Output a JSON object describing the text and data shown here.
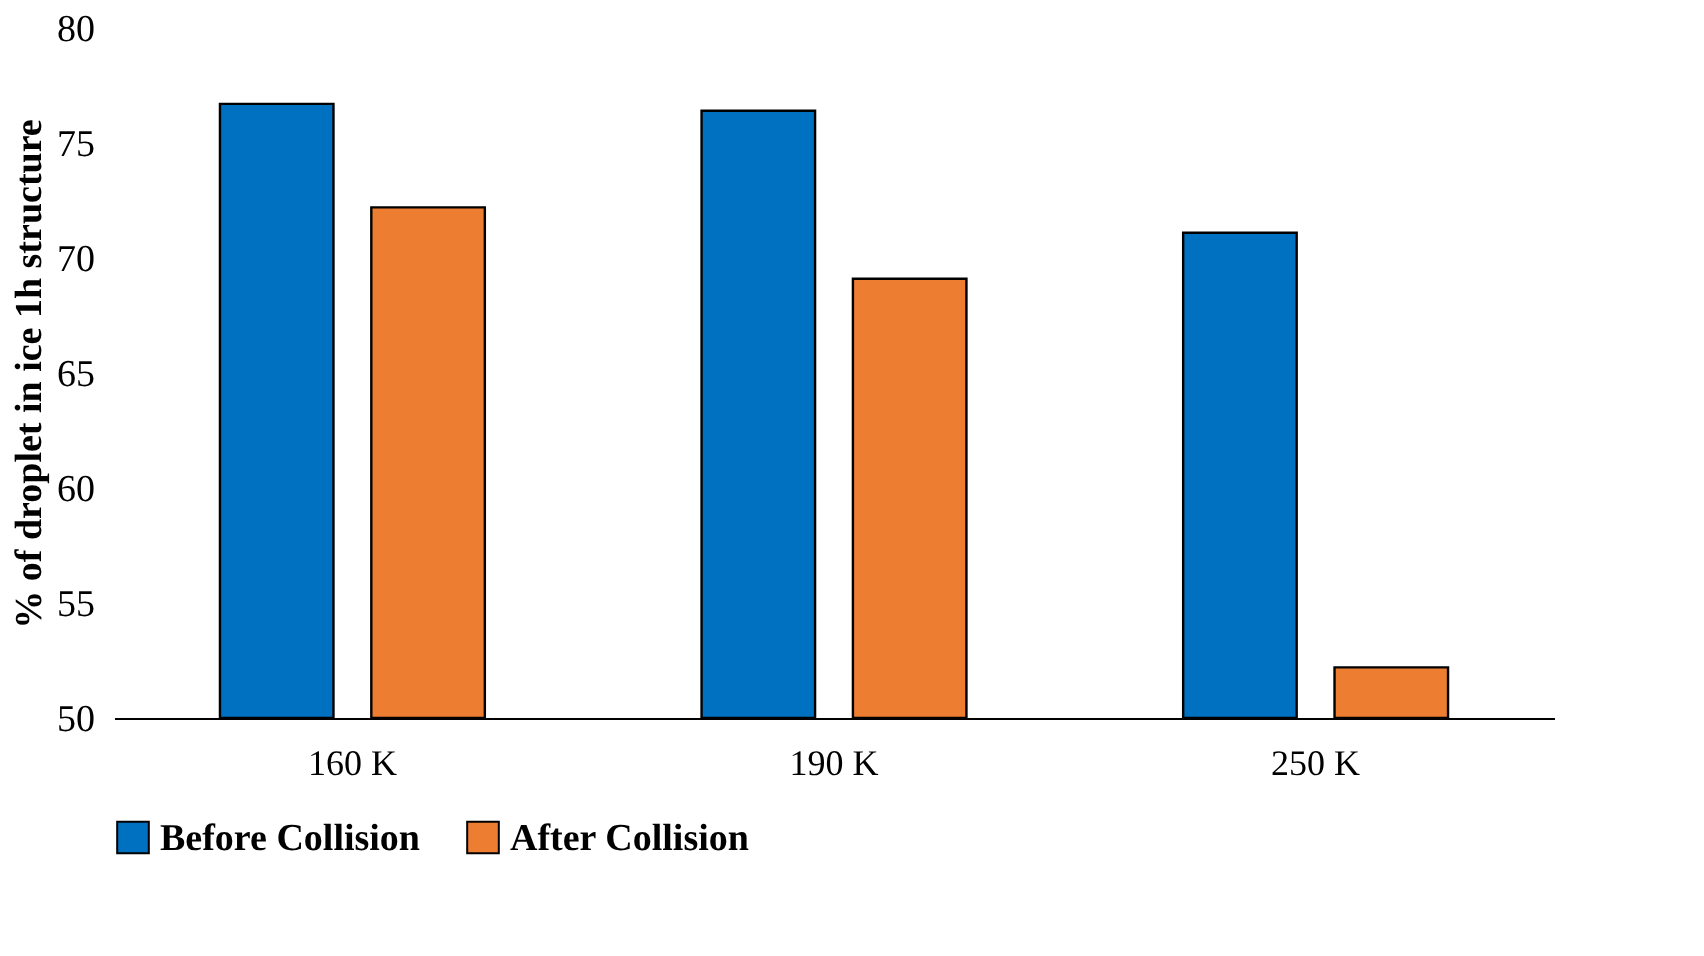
{
  "chart_data": {
    "type": "bar",
    "ylabel": "% of droplet in ice 1h structure",
    "categories": [
      "160 K",
      "190 K",
      "250 K"
    ],
    "series": [
      {
        "name": "Before Collision",
        "color": "#0070c0",
        "values": [
          76.7,
          76.4,
          71.1
        ]
      },
      {
        "name": "After Collision",
        "color": "#ed7d31",
        "values": [
          72.2,
          69.1,
          52.2
        ]
      }
    ],
    "ylim": [
      50,
      80
    ],
    "yticks": [
      50,
      55,
      60,
      65,
      70,
      75,
      80
    ],
    "grid": false,
    "legend": "bottom"
  }
}
